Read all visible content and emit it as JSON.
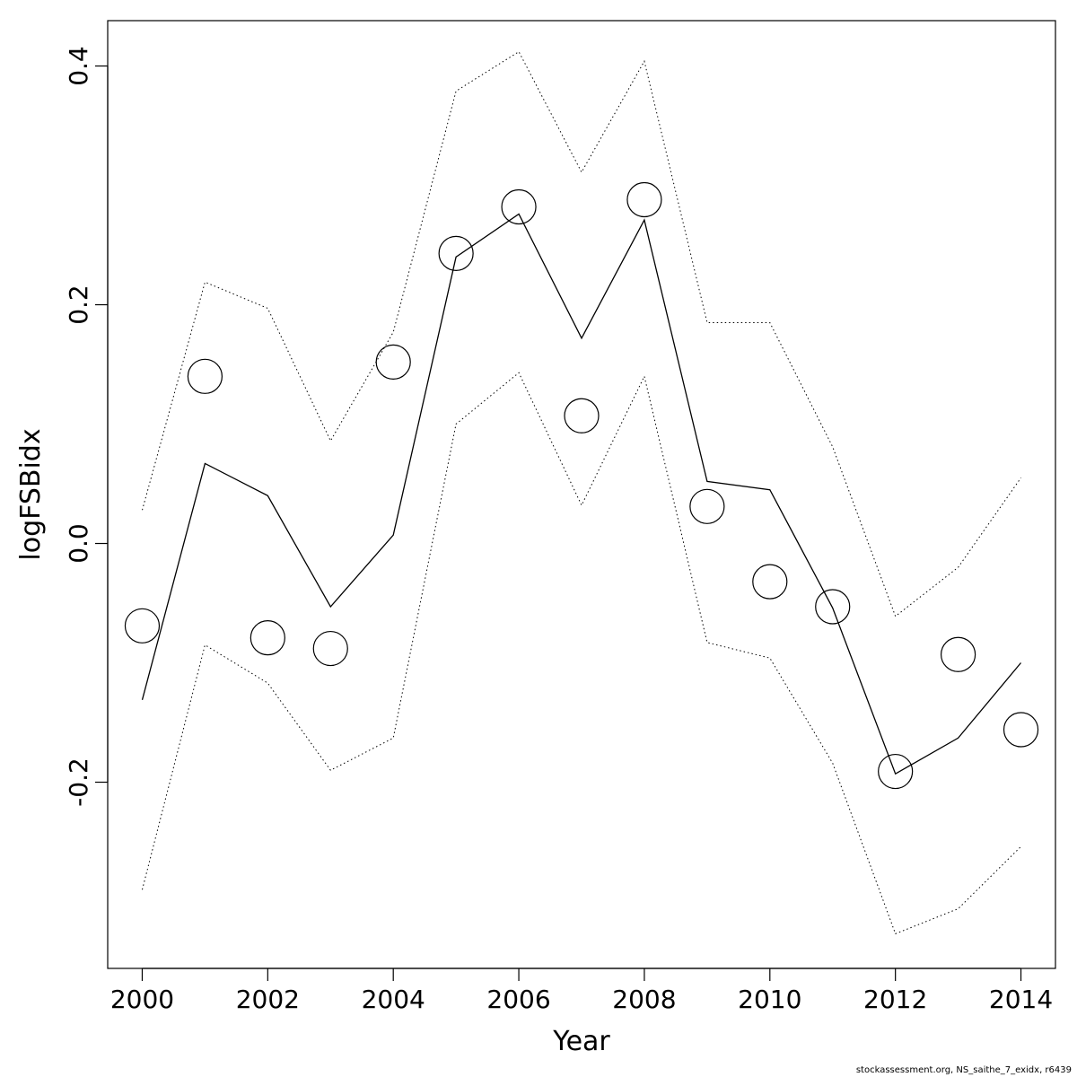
{
  "chart_data": {
    "type": "line",
    "xlabel": "Year",
    "ylabel": "logFSBidx",
    "xlim": [
      1999.45,
      2014.55
    ],
    "ylim": [
      -0.356,
      0.438
    ],
    "xticks": [
      2000,
      2002,
      2004,
      2006,
      2008,
      2010,
      2012,
      2014
    ],
    "xtick_labels": [
      "2000",
      "2002",
      "2004",
      "2006",
      "2008",
      "2010",
      "2012",
      "2014"
    ],
    "yticks": [
      -0.2,
      0.0,
      0.2,
      0.4
    ],
    "ytick_labels": [
      "-0.2",
      "0.0",
      "0.2",
      "0.4"
    ],
    "grid": false,
    "legend": "none",
    "x": [
      2000,
      2001,
      2002,
      2003,
      2004,
      2005,
      2006,
      2007,
      2008,
      2009,
      2010,
      2011,
      2012,
      2013,
      2014
    ],
    "series": [
      {
        "style": "points",
        "values": [
          -0.069,
          0.14,
          -0.079,
          -0.088,
          0.152,
          0.243,
          0.282,
          0.107,
          0.288,
          0.031,
          -0.032,
          -0.053,
          -0.191,
          -0.093,
          -0.156
        ]
      },
      {
        "style": "solid",
        "values": [
          -0.131,
          0.067,
          0.04,
          -0.053,
          0.007,
          0.24,
          0.276,
          0.172,
          0.271,
          0.052,
          0.045,
          -0.054,
          -0.193,
          -0.163,
          -0.1
        ]
      },
      {
        "style": "dotted",
        "values": [
          0.028,
          0.219,
          0.197,
          0.086,
          0.177,
          0.379,
          0.412,
          0.311,
          0.404,
          0.185,
          0.185,
          0.081,
          -0.061,
          -0.02,
          0.055
        ]
      },
      {
        "style": "dotted",
        "values": [
          -0.29,
          -0.085,
          -0.117,
          -0.19,
          -0.163,
          0.1,
          0.143,
          0.032,
          0.14,
          -0.083,
          -0.096,
          -0.184,
          -0.327,
          -0.306,
          -0.254
        ]
      }
    ]
  },
  "footer": "stockassessment.org, NS_saithe_7_exidx, r6439"
}
